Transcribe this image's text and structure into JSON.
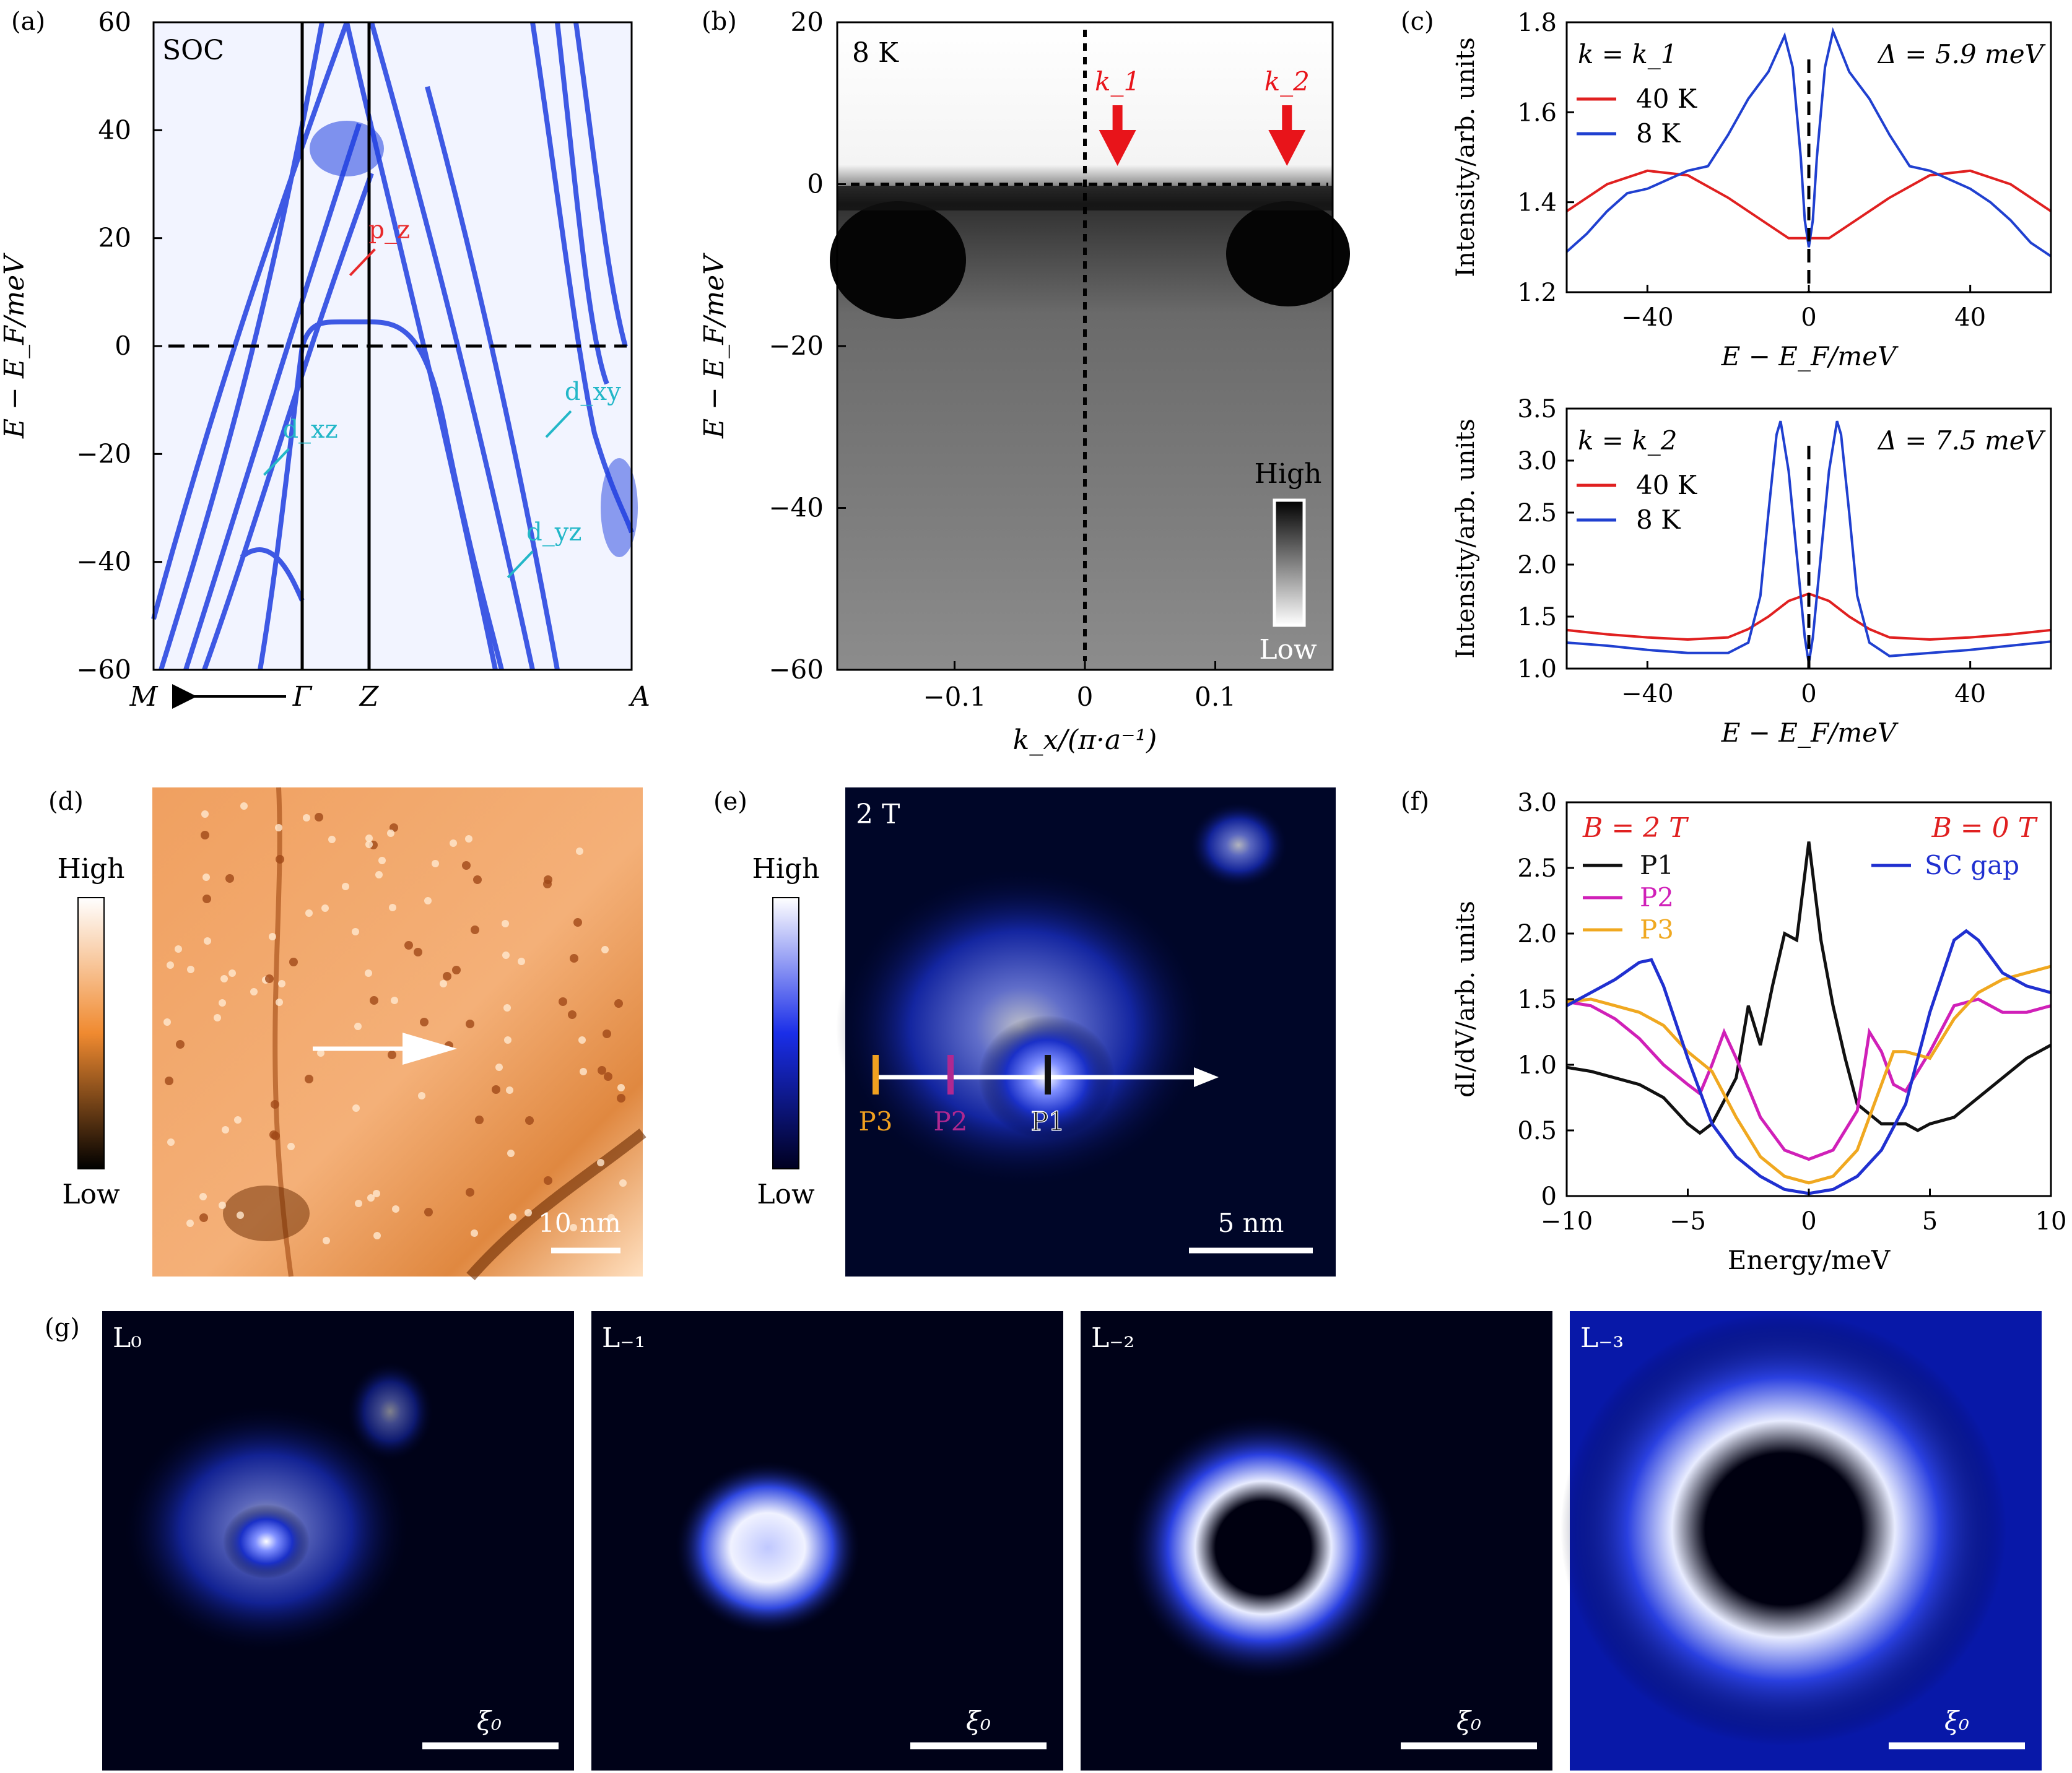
{
  "chart_data": [
    {
      "panel": "(a)",
      "type": "line",
      "annotation": "SOC",
      "ylabel": "E − E_F/meV",
      "ylim": [
        -60,
        60
      ],
      "yticks": [
        60,
        40,
        20,
        0,
        -20,
        -40,
        -60
      ],
      "xticks": [
        "M",
        "Γ",
        "Z",
        "A"
      ],
      "arrow_label": "M ⟵ Γ",
      "orbital_labels": [
        {
          "text": "p_z",
          "color": "#e8282a",
          "x": 0.45,
          "y": 20
        },
        {
          "text": "d_xz",
          "color": "#23b7c8",
          "x": 0.27,
          "y": -17
        },
        {
          "text": "d_xy",
          "color": "#23b7c8",
          "x": 0.86,
          "y": -10
        },
        {
          "text": "d_yz",
          "color": "#23b7c8",
          "x": 0.78,
          "y": -36
        }
      ],
      "fermi_level": 0,
      "colors": {
        "band": "#1f3fe0",
        "background": "#eef0ff"
      }
    },
    {
      "panel": "(b)",
      "type": "heatmap",
      "annotation": "8 K",
      "xlabel": "k_x/(π·a⁻¹)",
      "ylabel": "E − E_F/meV",
      "xlim": [
        -0.19,
        0.19
      ],
      "ylim": [
        -60,
        20
      ],
      "xticks": [
        -0.1,
        0,
        0.1
      ],
      "yticks": [
        20,
        0,
        -20,
        -40,
        -60
      ],
      "markers": [
        {
          "label": "k_1",
          "x": 0.025
        },
        {
          "label": "k_2",
          "x": 0.155
        }
      ],
      "colorbar": {
        "high": "High",
        "low": "Low"
      },
      "colors": {
        "arrow": "#e8141a"
      }
    },
    {
      "panel": "(c)",
      "type": "line",
      "subplots": [
        {
          "k_label": "k = k_1",
          "gap_label": "Δ = 5.9 meV",
          "xlabel": "E − E_F/meV",
          "ylabel": "Intensity/arb. units",
          "xlim": [
            -60,
            60
          ],
          "ylim": [
            1.2,
            1.8
          ],
          "xticks": [
            -40,
            0,
            40
          ],
          "yticks": [
            1.2,
            1.4,
            1.6,
            1.8
          ],
          "series": [
            {
              "name": "40 K",
              "color": "#e02020",
              "x": [
                -60,
                -50,
                -40,
                -30,
                -20,
                -10,
                -5,
                0,
                5,
                10,
                20,
                30,
                40,
                50,
                60
              ],
              "y": [
                1.38,
                1.44,
                1.47,
                1.46,
                1.41,
                1.35,
                1.32,
                1.32,
                1.32,
                1.35,
                1.41,
                1.46,
                1.47,
                1.44,
                1.38
              ]
            },
            {
              "name": "8 K",
              "color": "#2040d0",
              "x": [
                -60,
                -55,
                -50,
                -45,
                -40,
                -35,
                -30,
                -25,
                -20,
                -15,
                -10,
                -6,
                -4,
                -2,
                -1,
                0,
                1,
                2,
                4,
                6,
                10,
                15,
                20,
                25,
                30,
                35,
                40,
                45,
                50,
                55,
                60
              ],
              "y": [
                1.29,
                1.33,
                1.38,
                1.42,
                1.43,
                1.45,
                1.47,
                1.48,
                1.55,
                1.63,
                1.69,
                1.77,
                1.7,
                1.5,
                1.36,
                1.3,
                1.36,
                1.5,
                1.7,
                1.78,
                1.69,
                1.63,
                1.55,
                1.48,
                1.47,
                1.45,
                1.43,
                1.4,
                1.36,
                1.31,
                1.28
              ]
            }
          ]
        },
        {
          "k_label": "k = k_2",
          "gap_label": "Δ = 7.5 meV",
          "xlabel": "E − E_F/meV",
          "ylabel": "Intensity/arb. units",
          "xlim": [
            -60,
            60
          ],
          "ylim": [
            1.0,
            3.5
          ],
          "xticks": [
            -40,
            0,
            40
          ],
          "yticks": [
            1.0,
            1.5,
            2.0,
            2.5,
            3.0,
            3.5
          ],
          "series": [
            {
              "name": "40 K",
              "color": "#e02020",
              "x": [
                -60,
                -50,
                -40,
                -30,
                -20,
                -15,
                -10,
                -5,
                0,
                5,
                10,
                15,
                20,
                30,
                40,
                50,
                60
              ],
              "y": [
                1.37,
                1.33,
                1.3,
                1.28,
                1.3,
                1.38,
                1.5,
                1.65,
                1.72,
                1.65,
                1.5,
                1.38,
                1.3,
                1.28,
                1.3,
                1.33,
                1.37
              ]
            },
            {
              "name": "8 K",
              "color": "#2040d0",
              "x": [
                -60,
                -50,
                -40,
                -30,
                -20,
                -15,
                -12,
                -10,
                -8,
                -7,
                -5,
                -3,
                -1,
                0,
                1,
                3,
                5,
                7,
                8,
                10,
                12,
                15,
                20,
                30,
                40,
                50,
                60
              ],
              "y": [
                1.25,
                1.22,
                1.18,
                1.15,
                1.15,
                1.25,
                1.7,
                2.5,
                3.25,
                3.38,
                2.9,
                2.1,
                1.3,
                1.05,
                1.3,
                2.1,
                2.9,
                3.38,
                3.25,
                2.5,
                1.7,
                1.25,
                1.12,
                1.15,
                1.18,
                1.22,
                1.26
              ]
            }
          ]
        }
      ]
    },
    {
      "panel": "(d)",
      "type": "heatmap",
      "colorbar": {
        "high": "High",
        "low": "Low"
      },
      "scale_bar": "10 nm",
      "colors": {
        "map": "#f0a060"
      }
    },
    {
      "panel": "(e)",
      "type": "heatmap",
      "annotation": "2 T",
      "colorbar": {
        "high": "High",
        "low": "Low"
      },
      "scale_bar": "5 nm",
      "points": [
        {
          "label": "P3",
          "color": "#f0a020"
        },
        {
          "label": "P2",
          "color": "#b02890"
        },
        {
          "label": "P1",
          "color": "#111111"
        }
      ],
      "colors": {
        "map": "#1030c0"
      }
    },
    {
      "panel": "(f)",
      "type": "line",
      "xlabel": "Energy/meV",
      "ylabel": "dI/dV/arb. units",
      "xlim": [
        -10,
        10
      ],
      "ylim": [
        0,
        3.0
      ],
      "xticks": [
        -10,
        -5,
        0,
        5,
        10
      ],
      "yticks": [
        0,
        0.5,
        1.0,
        1.5,
        2.0,
        2.5,
        3.0
      ],
      "legend_titles": [
        "B = 2 T",
        "B = 0 T"
      ],
      "series": [
        {
          "name": "P1",
          "color": "#111111",
          "x": [
            -10,
            -9,
            -8,
            -7,
            -6,
            -5,
            -4.5,
            -4,
            -3,
            -2.5,
            -2,
            -1.5,
            -1,
            -0.5,
            0,
            0.5,
            1,
            1.5,
            2,
            3,
            4,
            4.5,
            5,
            6,
            7,
            8,
            9,
            10
          ],
          "y": [
            0.98,
            0.95,
            0.9,
            0.85,
            0.75,
            0.55,
            0.48,
            0.55,
            0.9,
            1.45,
            1.15,
            1.6,
            2.0,
            1.95,
            2.7,
            1.95,
            1.45,
            1.05,
            0.7,
            0.55,
            0.55,
            0.5,
            0.55,
            0.6,
            0.75,
            0.9,
            1.05,
            1.15
          ]
        },
        {
          "name": "P2",
          "color": "#d020b8",
          "x": [
            -10,
            -9,
            -8,
            -7,
            -6,
            -5,
            -4.5,
            -4,
            -3.5,
            -3,
            -2,
            -1,
            0,
            1,
            2,
            2.5,
            3,
            3.5,
            4,
            5,
            6,
            7,
            8,
            9,
            10
          ],
          "y": [
            1.48,
            1.45,
            1.35,
            1.2,
            1.0,
            0.85,
            0.78,
            1.0,
            1.25,
            1.05,
            0.6,
            0.35,
            0.28,
            0.35,
            0.65,
            1.25,
            1.1,
            0.85,
            0.8,
            1.1,
            1.45,
            1.5,
            1.4,
            1.4,
            1.45
          ]
        },
        {
          "name": "P3",
          "color": "#f0a820",
          "x": [
            -10,
            -9,
            -8,
            -7,
            -6,
            -5,
            -4,
            -3,
            -2,
            -1,
            0,
            1,
            2,
            3,
            3.5,
            4,
            5,
            6,
            7,
            8,
            9,
            10
          ],
          "y": [
            1.48,
            1.5,
            1.45,
            1.4,
            1.3,
            1.1,
            0.95,
            0.6,
            0.3,
            0.15,
            0.1,
            0.15,
            0.35,
            0.85,
            1.1,
            1.1,
            1.05,
            1.35,
            1.55,
            1.65,
            1.7,
            1.75
          ]
        },
        {
          "name": "SC gap",
          "color": "#2030d0",
          "x": [
            -10,
            -9,
            -8,
            -7,
            -6.5,
            -6,
            -5,
            -4,
            -3,
            -2,
            -1,
            0,
            1,
            2,
            3,
            4,
            5,
            6,
            6.5,
            7,
            8,
            9,
            10
          ],
          "y": [
            1.45,
            1.55,
            1.65,
            1.78,
            1.8,
            1.6,
            1.05,
            0.55,
            0.3,
            0.15,
            0.05,
            0.02,
            0.05,
            0.15,
            0.35,
            0.7,
            1.4,
            1.95,
            2.02,
            1.95,
            1.7,
            1.6,
            1.55
          ]
        }
      ]
    },
    {
      "panel": "(g)",
      "type": "heatmap",
      "maps": [
        {
          "label": "L₀",
          "scale_bar": "ξ₀"
        },
        {
          "label": "L₋₁",
          "scale_bar": "ξ₀"
        },
        {
          "label": "L₋₂",
          "scale_bar": "ξ₀"
        },
        {
          "label": "L₋₃",
          "scale_bar": "ξ₀"
        }
      ]
    }
  ],
  "panel_labels": [
    "(a)",
    "(b)",
    "(c)",
    "(d)",
    "(e)",
    "(f)",
    "(g)"
  ]
}
